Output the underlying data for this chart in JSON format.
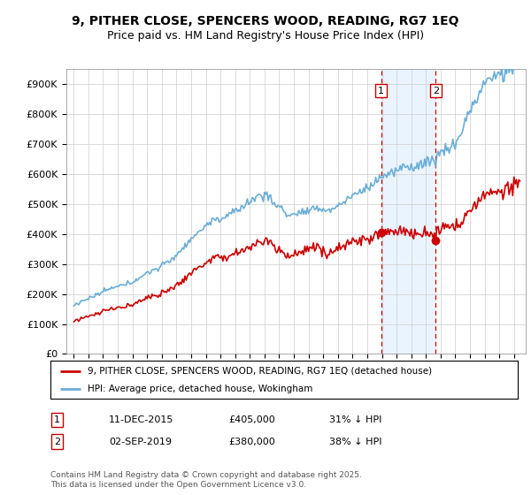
{
  "title": "9, PITHER CLOSE, SPENCERS WOOD, READING, RG7 1EQ",
  "subtitle": "Price paid vs. HM Land Registry's House Price Index (HPI)",
  "legend_line1": "9, PITHER CLOSE, SPENCERS WOOD, READING, RG7 1EQ (detached house)",
  "legend_line2": "HPI: Average price, detached house, Wokingham",
  "footnote": "Contains HM Land Registry data © Crown copyright and database right 2025.\nThis data is licensed under the Open Government Licence v3.0.",
  "sale1_label": "1",
  "sale1_date": "11-DEC-2015",
  "sale1_price": "£405,000",
  "sale1_hpi": "31% ↓ HPI",
  "sale2_label": "2",
  "sale2_date": "02-SEP-2019",
  "sale2_price": "£380,000",
  "sale2_hpi": "38% ↓ HPI",
  "sale1_x": 2015.95,
  "sale2_x": 2019.67,
  "sale1_y": 405000,
  "sale2_y": 380000,
  "hpi_color": "#6baed6",
  "price_color": "#cc0000",
  "vline_color": "#cc0000",
  "shade_color": "#ddeeff",
  "ylim_min": 0,
  "ylim_max": 950000,
  "yticks": [
    0,
    100000,
    200000,
    300000,
    400000,
    500000,
    600000,
    700000,
    800000,
    900000
  ],
  "ytick_labels": [
    "£0",
    "£100K",
    "£200K",
    "£300K",
    "£400K",
    "£500K",
    "£600K",
    "£700K",
    "£800K",
    "£900K"
  ],
  "xmin": 1994.5,
  "xmax": 2025.8
}
